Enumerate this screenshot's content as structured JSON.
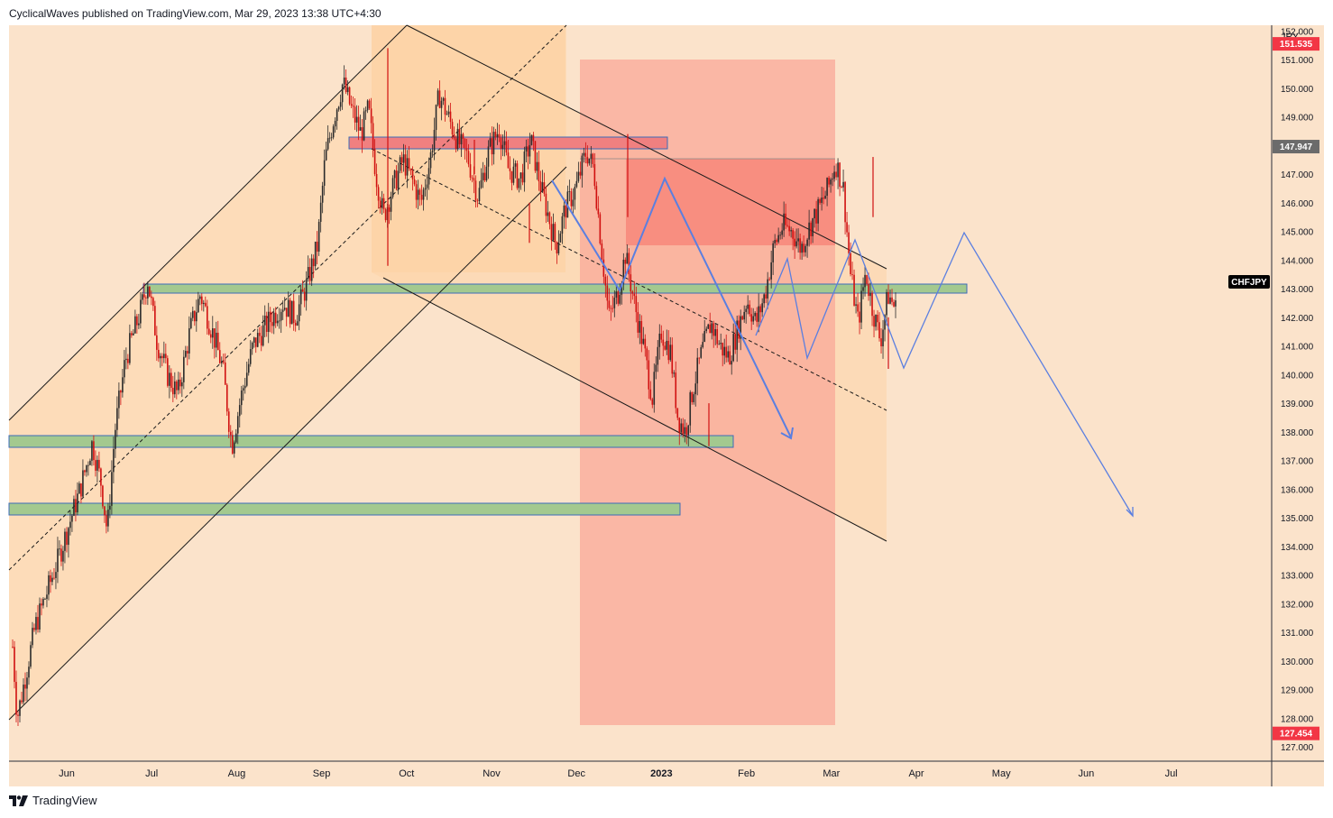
{
  "header": {
    "published_text": "CyclicalWaves published on TradingView.com, Mar 29, 2023 13:38 UTC+4:30"
  },
  "footer": {
    "brand": "TradingView",
    "logo_icon": "tradingview-logo-icon"
  },
  "colors": {
    "background": "#fbe3cb",
    "channel_fill": "#fdd8b0",
    "red_zone": "#f9a898",
    "red_zone_dark": "#f78a7c",
    "green_box": "#a3c98f",
    "green_box_border": "#3c6bb8",
    "red_box": "#f08080",
    "candle_up": "#2b2b2b",
    "candle_down": "#d01010",
    "projection": "#5b7fe0",
    "price_tag": "#f23645",
    "gray_tag": "#6b6b6b",
    "symbol_tag": "#000000"
  },
  "chart_data": {
    "type": "candlestick",
    "symbol": "CHFJPY",
    "currency": "JPY",
    "price_min": 126.5,
    "price_max": 152.2,
    "time_axis": [
      "Jun",
      "Jul",
      "Aug",
      "Sep",
      "Oct",
      "Nov",
      "Dec",
      "2023",
      "Feb",
      "Mar",
      "Apr",
      "May",
      "Jun",
      "Jul"
    ],
    "price_ticks": [
      "152.000",
      "151.000",
      "150.000",
      "149.000",
      "148.000",
      "147.000",
      "146.000",
      "145.000",
      "144.000",
      "143.000",
      "142.000",
      "141.000",
      "140.000",
      "139.000",
      "138.000",
      "137.000",
      "136.000",
      "135.000",
      "134.000",
      "133.000",
      "132.000",
      "131.000",
      "130.000",
      "129.000",
      "128.000",
      "127.000"
    ],
    "price_tags": [
      {
        "label": "151.535",
        "value": 151.535,
        "color": "#f23645"
      },
      {
        "label": "147.947",
        "value": 147.947,
        "color": "#6b6b6b"
      },
      {
        "label": "127.454",
        "value": 127.454,
        "color": "#f23645"
      }
    ],
    "symbol_tag": {
      "label": "CHFJPY",
      "value": 143.5
    },
    "price_path": [
      [
        0.0,
        130.5
      ],
      [
        0.3,
        128.0
      ],
      [
        1.5,
        131.2
      ],
      [
        3.0,
        133.5
      ],
      [
        4.5,
        136.0
      ],
      [
        5.3,
        137.6
      ],
      [
        5.9,
        136.2
      ],
      [
        6.3,
        134.5
      ],
      [
        6.8,
        138.0
      ],
      [
        7.5,
        140.5
      ],
      [
        8.5,
        142.2
      ],
      [
        9.0,
        143.3
      ],
      [
        9.6,
        141.2
      ],
      [
        10.3,
        140.0
      ],
      [
        11.0,
        139.3
      ],
      [
        11.8,
        141.5
      ],
      [
        12.5,
        142.8
      ],
      [
        13.3,
        141.5
      ],
      [
        14.0,
        140.2
      ],
      [
        14.6,
        137.5
      ],
      [
        15.2,
        139.2
      ],
      [
        16.0,
        141.0
      ],
      [
        17.0,
        141.8
      ],
      [
        18.0,
        142.5
      ],
      [
        18.8,
        142.0
      ],
      [
        19.5,
        143.0
      ],
      [
        20.3,
        144.5
      ],
      [
        20.8,
        147.5
      ],
      [
        21.4,
        149.0
      ],
      [
        22.0,
        150.2
      ],
      [
        22.6,
        149.2
      ],
      [
        23.2,
        148.4
      ],
      [
        23.7,
        149.3
      ],
      [
        24.2,
        147.0
      ],
      [
        24.7,
        145.5
      ],
      [
        25.3,
        146.5
      ],
      [
        26.0,
        147.5
      ],
      [
        26.6,
        146.8
      ],
      [
        27.2,
        146.0
      ],
      [
        27.8,
        147.5
      ],
      [
        28.4,
        149.8
      ],
      [
        29.0,
        149.0
      ],
      [
        29.6,
        148.2
      ],
      [
        30.3,
        147.6
      ],
      [
        31.0,
        146.2
      ],
      [
        31.7,
        147.8
      ],
      [
        32.4,
        148.6
      ],
      [
        33.0,
        147.2
      ],
      [
        33.8,
        146.8
      ],
      [
        34.5,
        148.2
      ],
      [
        35.2,
        146.5
      ],
      [
        35.7,
        145.5
      ],
      [
        36.2,
        144.5
      ],
      [
        36.8,
        145.8
      ],
      [
        37.5,
        146.5
      ],
      [
        38.2,
        147.8
      ],
      [
        38.7,
        147.2
      ],
      [
        39.2,
        144.5
      ],
      [
        39.7,
        142.0
      ],
      [
        40.3,
        142.8
      ],
      [
        40.8,
        144.2
      ],
      [
        41.4,
        142.5
      ],
      [
        42.0,
        141.0
      ],
      [
        42.6,
        139.2
      ],
      [
        43.2,
        141.5
      ],
      [
        43.8,
        140.8
      ],
      [
        44.3,
        138.5
      ],
      [
        44.8,
        138.0
      ],
      [
        45.3,
        139.5
      ],
      [
        45.9,
        140.8
      ],
      [
        46.5,
        141.8
      ],
      [
        47.1,
        141.0
      ],
      [
        47.7,
        140.6
      ],
      [
        48.3,
        141.6
      ],
      [
        48.9,
        142.6
      ],
      [
        49.5,
        141.8
      ],
      [
        50.1,
        142.8
      ],
      [
        50.7,
        144.5
      ],
      [
        51.3,
        145.2
      ],
      [
        51.9,
        145.0
      ],
      [
        52.5,
        144.4
      ],
      [
        53.1,
        145.2
      ],
      [
        53.7,
        145.8
      ],
      [
        54.3,
        146.5
      ],
      [
        54.8,
        147.4
      ],
      [
        55.3,
        146.6
      ],
      [
        55.8,
        143.5
      ],
      [
        56.3,
        141.8
      ],
      [
        56.8,
        143.6
      ],
      [
        57.3,
        142.2
      ],
      [
        57.8,
        141.2
      ],
      [
        58.3,
        142.8
      ],
      [
        58.8,
        142.3
      ]
    ]
  }
}
